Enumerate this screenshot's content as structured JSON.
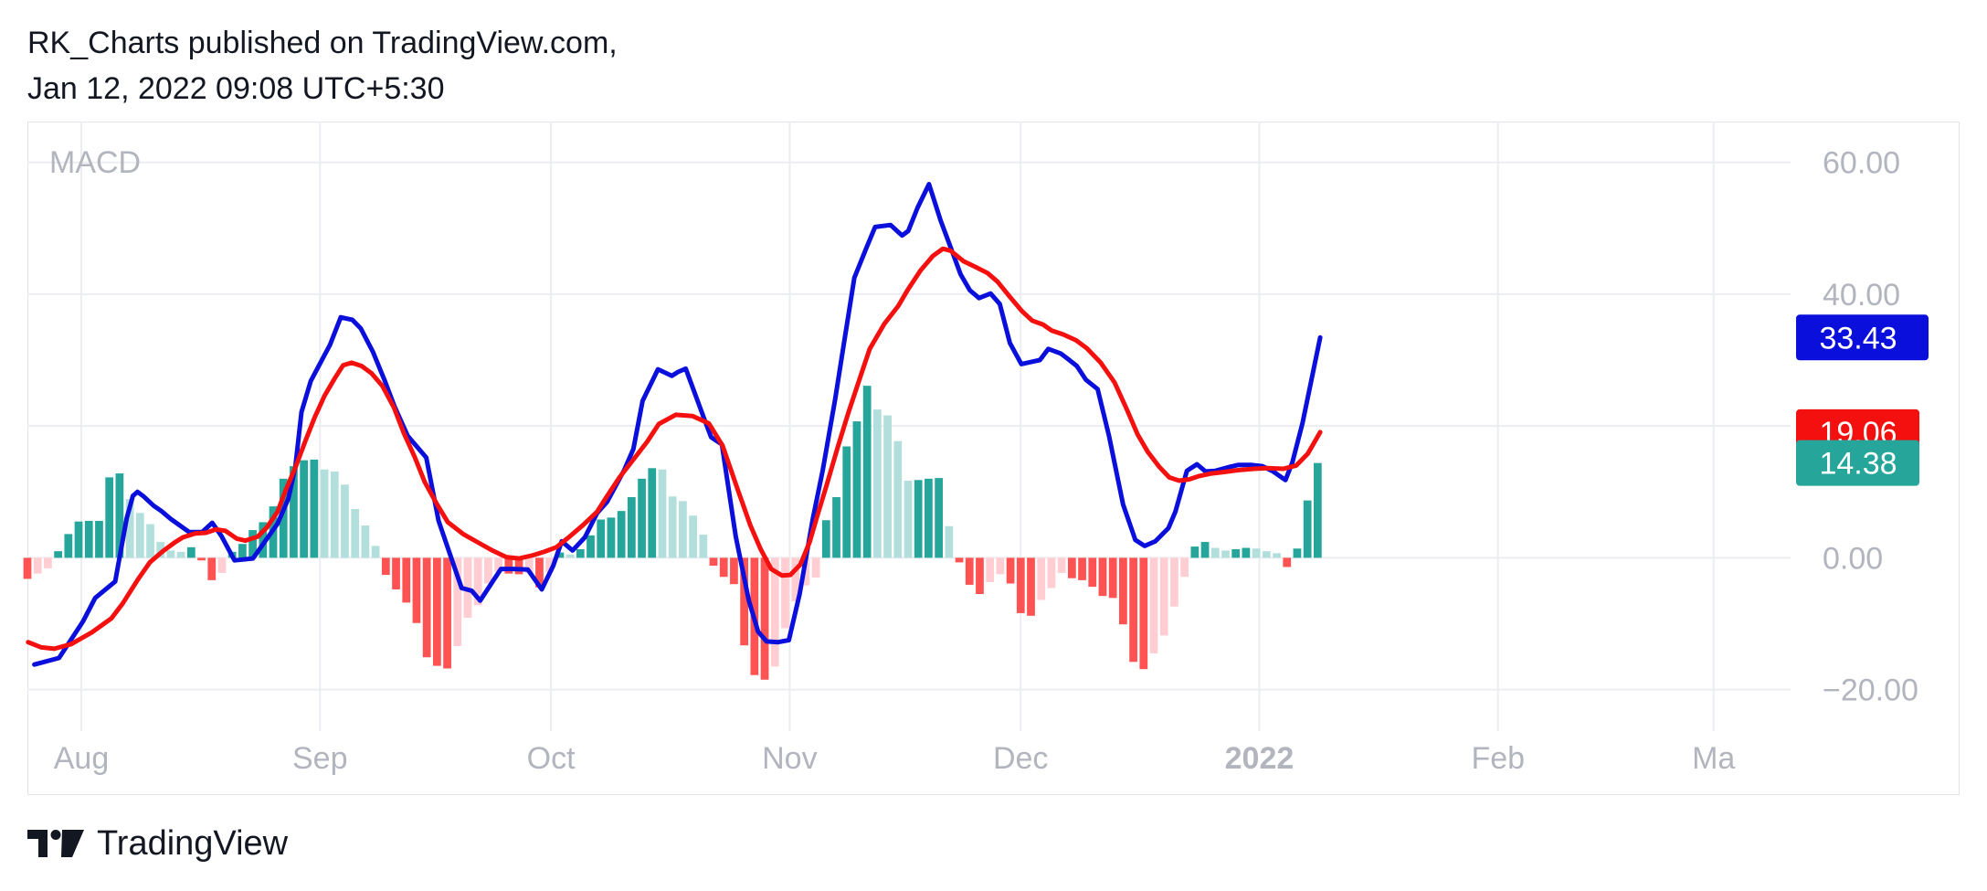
{
  "header": {
    "line1": "RK_Charts published on TradingView.com,",
    "line2": "Jan 12, 2022 09:08 UTC+5:30"
  },
  "branding": {
    "label": "TradingView"
  },
  "chart_data": {
    "type": "line",
    "title": "MACD",
    "ylim": [
      -26.3,
      66.2
    ],
    "grid": true,
    "y_ticks": [
      60,
      40,
      20,
      0,
      -20
    ],
    "y_tick_labels": [
      "60.00",
      "40.00",
      "",
      "0.00",
      "−20.00"
    ],
    "x_tick_labels": [
      "Aug",
      "Sep",
      "Oct",
      "Nov",
      "Dec",
      "2022",
      "Feb",
      "Ma"
    ],
    "x_tick_days": [
      0,
      31,
      61,
      92,
      122,
      153,
      184,
      212
    ],
    "x_range_days": [
      -7,
      222
    ],
    "colors": {
      "macd": "#0b0fdb",
      "signal": "#f51010",
      "hist_pos_strong": "#26a69a",
      "hist_pos_weak": "#b2dfdb",
      "hist_neg_strong": "#ff5252",
      "hist_neg_weak": "#ffcdd2",
      "grid": "#ebedf1",
      "axis_text": "#b2b5be"
    },
    "last_values": [
      {
        "label": "33.43",
        "value": 33.43,
        "color": "#0b0fdb"
      },
      {
        "label": "19.06",
        "value": 19.06,
        "color": "#f51010"
      },
      {
        "label": "14.38",
        "value": 14.38,
        "color": "#26a69a"
      }
    ],
    "series": [
      {
        "x": [
          -6.1,
          -2.9,
          0.2,
          1.8,
          4.4,
          5.9,
          6.7,
          7.3,
          8.1,
          9.4,
          10.4,
          11.6,
          14.0,
          15.7,
          17.0,
          18.2,
          19.9,
          22.3,
          25.5,
          26.9,
          27.8,
          28.6,
          29.8,
          31.2,
          32.3,
          33.7,
          35.2,
          36.3,
          37.9,
          39.4,
          40.7,
          42.4,
          44.8,
          46.4,
          47.8,
          49.4,
          50.7,
          51.8,
          54.5,
          56.1,
          58.0,
          59.8,
          61.3,
          62.4,
          63.8,
          65.4,
          67.0,
          68.3,
          69.5,
          70.5,
          71.7,
          72.9,
          74.9,
          76.7,
          77.5,
          78.5,
          80.9,
          81.8,
          83.2,
          85.0,
          86.7,
          87.9,
          89.0,
          90.5,
          91.9,
          93.3,
          95.0,
          96.3,
          97.9,
          99.1,
          100.4,
          102.0,
          103.1,
          105.1,
          106.6,
          107.4,
          108.6,
          110.1,
          111.6,
          113.0,
          114.2,
          115.4,
          116.6,
          118.1,
          119.3,
          120.6,
          122.1,
          123.3,
          124.5,
          125.6,
          127.2,
          128.0,
          129.3,
          130.5,
          132.0,
          133.5,
          135.3,
          136.9,
          138.1,
          139.5,
          141.2,
          142.1,
          143.6,
          144.9,
          146.0,
          147.3,
          149.2,
          150.3,
          151.9,
          153.4,
          154.8,
          156.4,
          157.3,
          158.6,
          160.9
        ],
        "values": [
          -16.2,
          -15.2,
          -9.7,
          -6.1,
          -3.6,
          6.0,
          9.4,
          10.0,
          9.3,
          7.9,
          7.1,
          5.9,
          3.9,
          3.9,
          5.3,
          3.3,
          -0.4,
          -0.1,
          5.2,
          9.0,
          13.8,
          22.1,
          26.8,
          29.9,
          32.3,
          36.5,
          36.1,
          34.8,
          31.2,
          26.9,
          22.9,
          18.5,
          15.2,
          5.6,
          0.8,
          -4.6,
          -5.0,
          -6.5,
          -1.7,
          -1.7,
          -1.8,
          -4.8,
          -1.2,
          2.5,
          1.1,
          3.1,
          6.8,
          8.5,
          11.1,
          13.3,
          16.5,
          23.8,
          28.6,
          27.6,
          28.2,
          28.7,
          21.1,
          18.3,
          17.2,
          3.2,
          -6.5,
          -11.2,
          -12.7,
          -12.8,
          -12.5,
          -5.5,
          5.9,
          13.3,
          24.0,
          32.9,
          42.5,
          47.1,
          50.2,
          50.5,
          48.9,
          49.6,
          53.1,
          56.7,
          51.2,
          46.8,
          43.0,
          40.6,
          39.4,
          40.1,
          38.5,
          32.6,
          29.4,
          29.7,
          30.0,
          31.7,
          31.0,
          30.3,
          29.1,
          27.0,
          25.6,
          18.4,
          8.1,
          2.7,
          1.8,
          2.5,
          4.5,
          7.0,
          13.2,
          14.2,
          13.1,
          13.2,
          13.8,
          14.1,
          14.1,
          13.9,
          13.1,
          11.8,
          14.5,
          20.4,
          33.43
        ]
      },
      {
        "x": [
          -6.9,
          -5.2,
          -3.5,
          -1.3,
          1.4,
          3.9,
          5.4,
          7.4,
          8.9,
          10.6,
          12.1,
          13.2,
          14.8,
          16.2,
          17.5,
          18.7,
          20.2,
          21.3,
          22.9,
          24.1,
          25.5,
          26.5,
          27.8,
          29.1,
          30.3,
          31.6,
          32.9,
          34.0,
          35.1,
          36.4,
          37.7,
          39.1,
          40.6,
          41.9,
          43.3,
          44.6,
          46.2,
          47.6,
          49.6,
          51.4,
          53.4,
          55.2,
          56.9,
          58.7,
          60.1,
          61.7,
          63.3,
          65.2,
          67.0,
          68.2,
          69.9,
          71.7,
          73.5,
          75.0,
          77.2,
          79.4,
          81.5,
          83.3,
          85.2,
          86.9,
          88.2,
          89.6,
          91.0,
          92.1,
          93.4,
          94.6,
          95.6,
          96.8,
          98.2,
          99.6,
          101.1,
          102.4,
          104.3,
          106.1,
          107.4,
          109.0,
          110.6,
          111.9,
          112.9,
          114.6,
          116.2,
          117.7,
          119.0,
          120.6,
          122.2,
          123.5,
          124.9,
          126.0,
          127.5,
          129.2,
          130.6,
          132.4,
          134.2,
          135.8,
          137.2,
          138.5,
          140.0,
          141.3,
          142.6,
          143.9,
          145.2,
          146.8,
          148.3,
          150.2,
          152.3,
          154.1,
          156.1,
          157.8,
          159.3,
          160.9
        ],
        "values": [
          -12.8,
          -13.6,
          -13.8,
          -13.1,
          -11.3,
          -9.2,
          -6.9,
          -3.2,
          -0.7,
          1.0,
          2.3,
          3.1,
          3.7,
          3.8,
          4.3,
          4.1,
          2.9,
          2.6,
          3.2,
          4.6,
          7.0,
          10.1,
          13.7,
          17.7,
          21.3,
          24.6,
          27.2,
          29.2,
          29.6,
          29.1,
          28.0,
          26.1,
          22.8,
          18.9,
          15.3,
          11.5,
          8.1,
          5.4,
          3.6,
          2.4,
          1.1,
          0.1,
          -0.1,
          0.4,
          0.9,
          1.6,
          3.1,
          5.0,
          7.0,
          9.2,
          12.2,
          14.9,
          17.6,
          20.3,
          21.7,
          21.5,
          20.4,
          17.0,
          10.5,
          4.9,
          1.4,
          -1.7,
          -2.7,
          -2.6,
          -1.0,
          2.4,
          6.4,
          11.0,
          16.6,
          21.9,
          27.2,
          31.7,
          35.5,
          38.2,
          40.8,
          43.6,
          45.8,
          46.9,
          46.6,
          45.0,
          44.1,
          43.2,
          41.9,
          39.6,
          37.4,
          36.0,
          35.4,
          34.5,
          33.9,
          33.0,
          31.8,
          29.6,
          26.6,
          22.5,
          18.7,
          16.1,
          13.8,
          12.2,
          11.7,
          11.9,
          12.4,
          12.8,
          13.0,
          13.3,
          13.5,
          13.6,
          13.5,
          14.0,
          15.8,
          19.06
        ]
      }
    ],
    "histogram": {
      "values": [
        -3.2,
        -2.4,
        -1.6,
        1.0,
        3.6,
        5.5,
        5.6,
        5.6,
        12.2,
        12.8,
        8.9,
        6.8,
        5.1,
        2.4,
        1.1,
        0.9,
        1.6,
        -0.4,
        -3.4,
        -2.3,
        0.9,
        2.1,
        4.2,
        5.4,
        7.8,
        12.0,
        13.9,
        14.8,
        14.9,
        13.4,
        13.1,
        11.1,
        7.4,
        4.9,
        1.8,
        -2.6,
        -4.8,
        -6.8,
        -9.9,
        -15.1,
        -16.4,
        -16.8,
        -13.4,
        -9.1,
        -7.2,
        -3.9,
        -2.1,
        -2.4,
        -2.5,
        -2.3,
        -4.5,
        -2.2,
        0.8,
        0.5,
        1.3,
        3.4,
        5.8,
        6.1,
        7.1,
        9.2,
        12.0,
        13.6,
        13.4,
        9.3,
        8.6,
        6.4,
        3.5,
        -1.2,
        -2.9,
        -4.0,
        -13.3,
        -17.8,
        -18.5,
        -16.5,
        -10.7,
        -6.6,
        -4.2,
        -3.0,
        5.7,
        9.2,
        16.9,
        20.7,
        26.1,
        22.5,
        21.6,
        17.7,
        11.7,
        11.8,
        12.0,
        12.1,
        4.8,
        -0.7,
        -4.1,
        -5.5,
        -3.7,
        -2.5,
        -3.9,
        -8.4,
        -8.8,
        -6.4,
        -4.6,
        -2.3,
        -3.1,
        -3.4,
        -4.4,
        -5.8,
        -6.1,
        -10.1,
        -15.8,
        -16.9,
        -14.5,
        -11.8,
        -7.4,
        -2.9,
        1.7,
        2.4,
        1.5,
        1.1,
        1.3,
        1.5,
        1.4,
        1.0,
        0.7,
        -1.4,
        1.4,
        8.7,
        14.38
      ],
      "x_start_day": -7.0,
      "x_step_day": 1.33
    }
  }
}
